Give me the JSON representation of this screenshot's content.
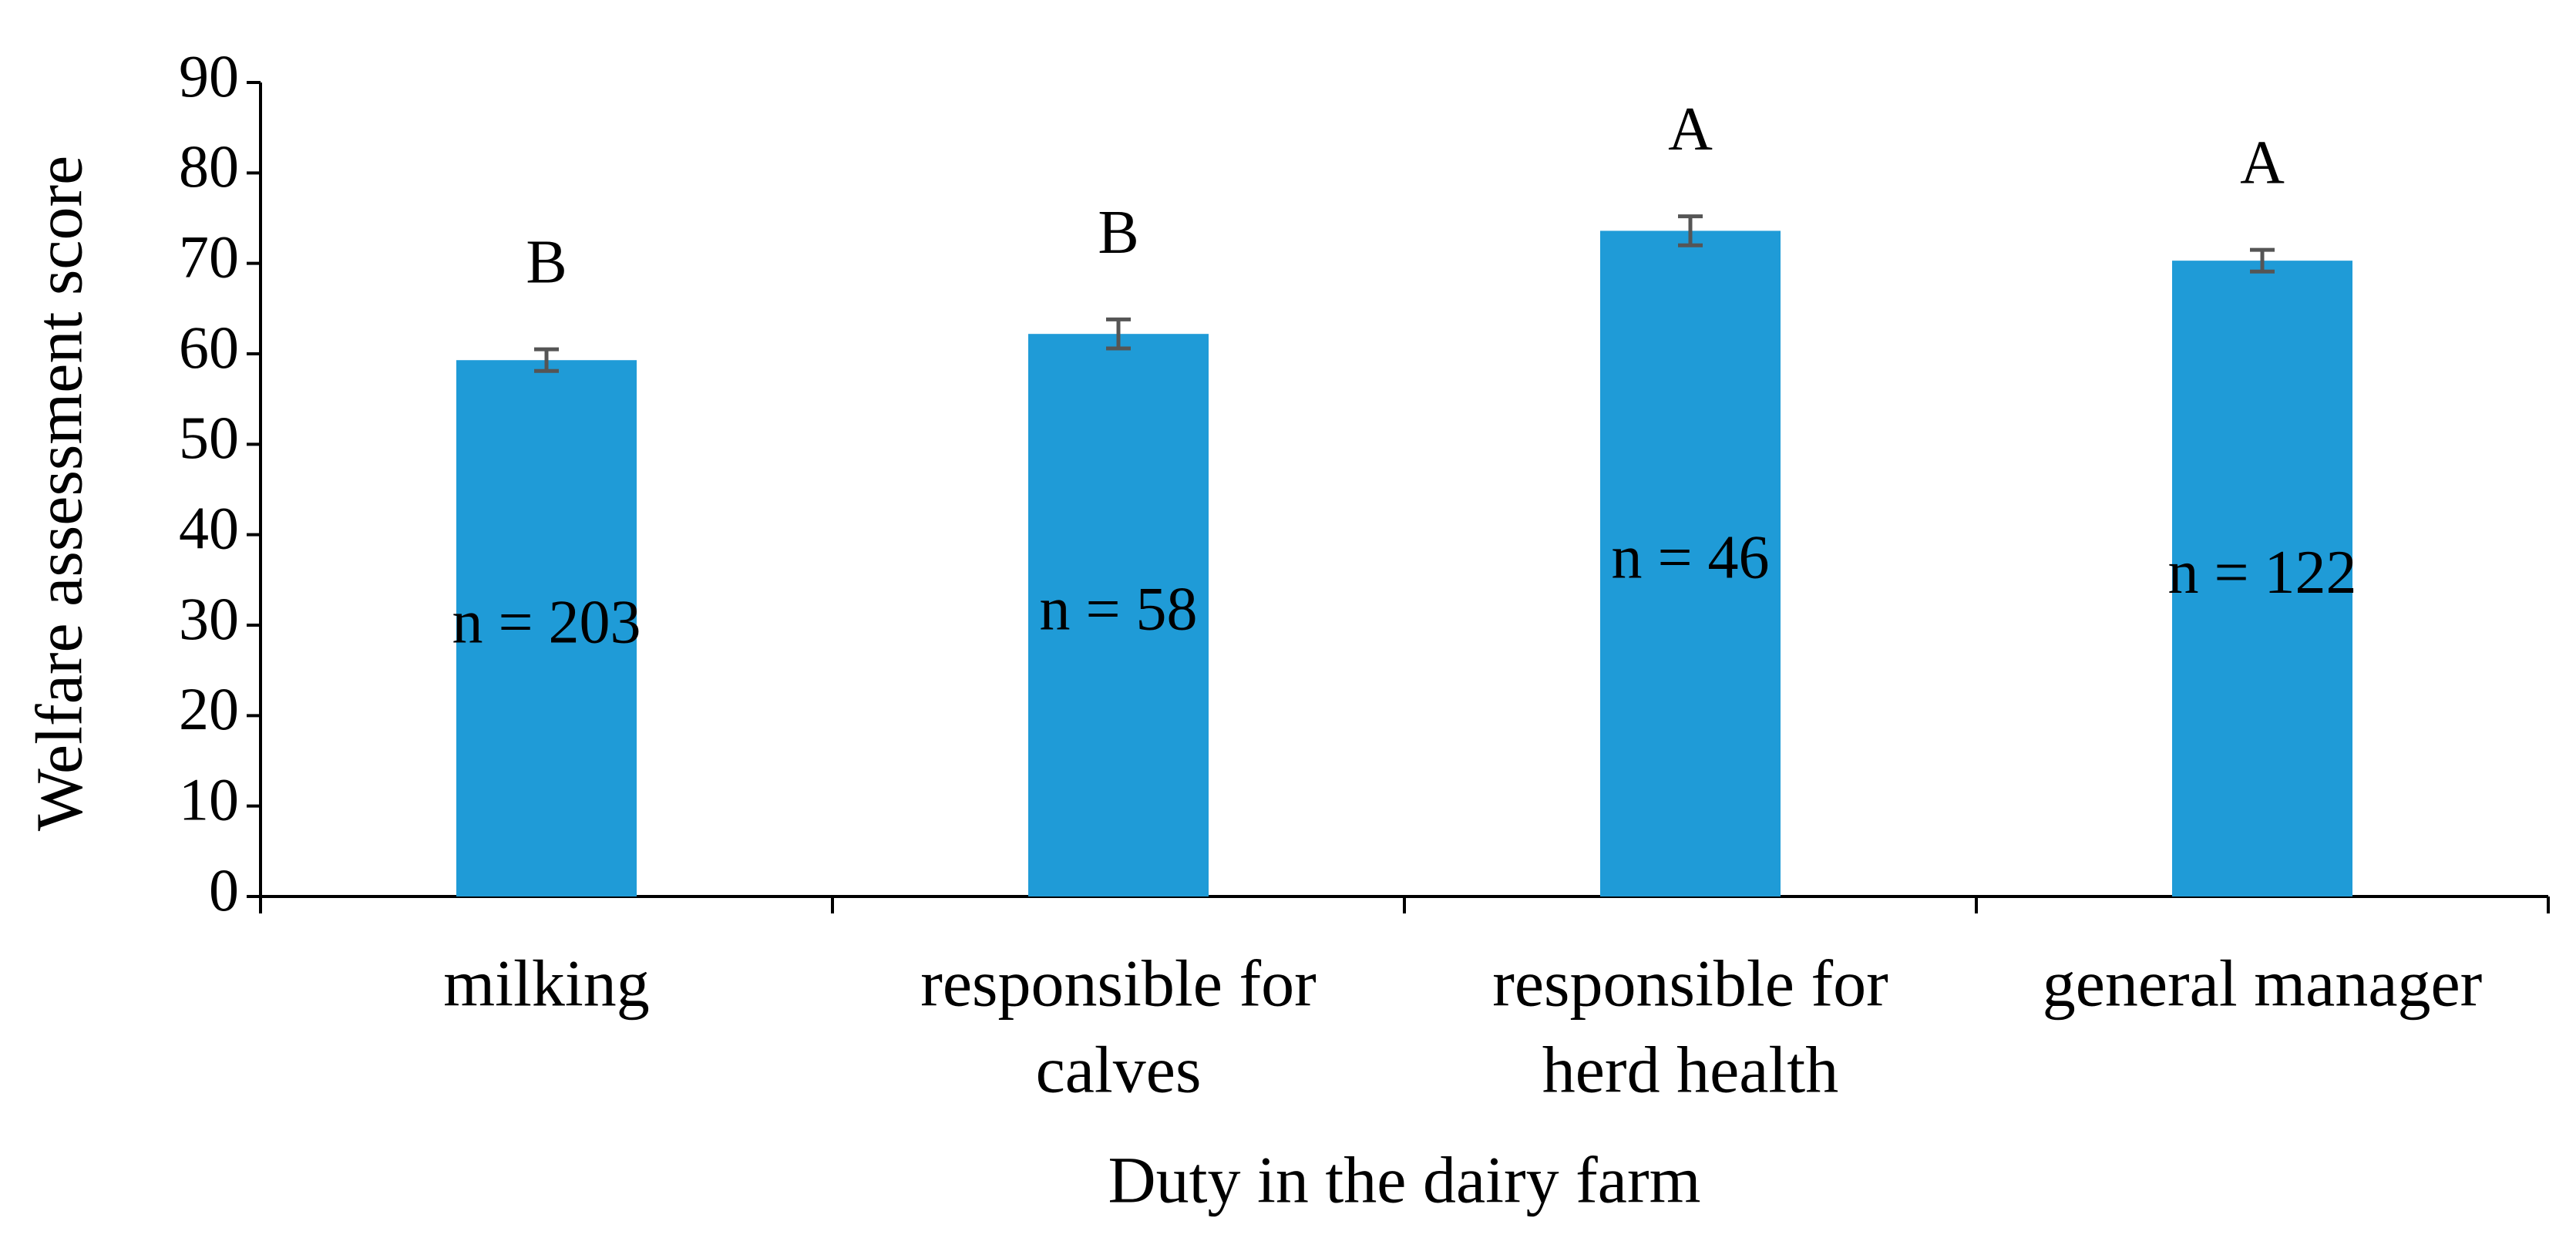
{
  "chart_data": {
    "type": "bar",
    "x_label": "Duty in the dairy farm",
    "y_label": "Welfare assessment score",
    "categories": [
      [
        "milking"
      ],
      [
        "responsible for",
        "calves"
      ],
      [
        "responsible for",
        "herd health"
      ],
      [
        "general manager"
      ]
    ],
    "values": [
      59.3,
      62.2,
      73.6,
      70.3
    ],
    "errors": [
      1.2,
      1.6,
      1.6,
      1.2
    ],
    "group_labels": [
      "B",
      "B",
      "A",
      "A"
    ],
    "n_labels": [
      "n = 203",
      "n = 58",
      "n = 46",
      "n = 122"
    ],
    "color": "#1f9bd7",
    "error_color": "#555555",
    "ylim": [
      0,
      90
    ],
    "yticks": [
      0,
      10,
      20,
      30,
      40,
      50,
      60,
      70,
      80,
      90
    ],
    "grid": false
  }
}
